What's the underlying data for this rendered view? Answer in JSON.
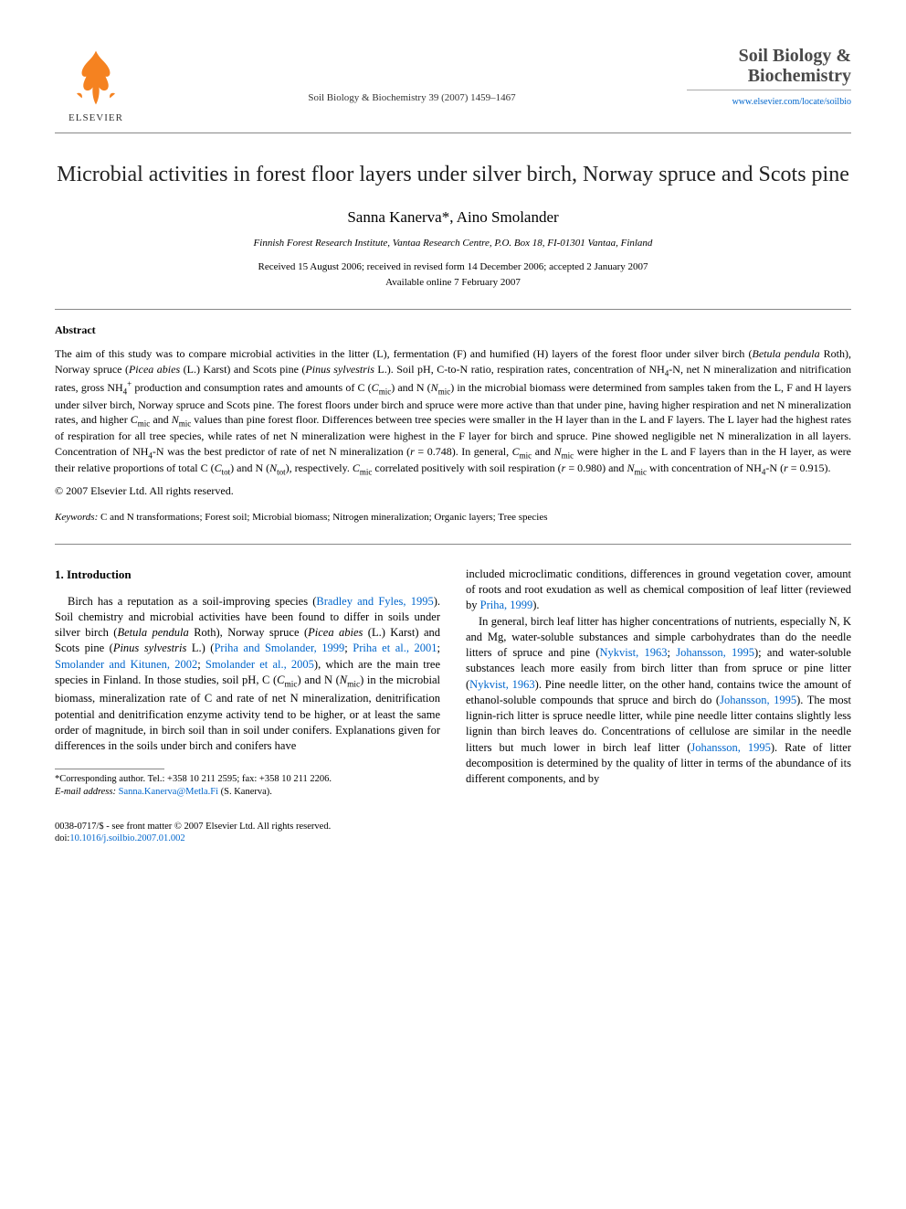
{
  "header": {
    "publisher_name": "ELSEVIER",
    "journal_ref": "Soil Biology & Biochemistry 39 (2007) 1459–1467",
    "journal_logo_line1": "Soil Biology &",
    "journal_logo_line2": "Biochemistry",
    "journal_url": "www.elsevier.com/locate/soilbio"
  },
  "title": "Microbial activities in forest floor layers under silver birch, Norway spruce and Scots pine",
  "authors": "Sanna Kanerva*, Aino Smolander",
  "affiliation": "Finnish Forest Research Institute, Vantaa Research Centre, P.O. Box 18, FI-01301 Vantaa, Finland",
  "dates_line1": "Received 15 August 2006; received in revised form 14 December 2006; accepted 2 January 2007",
  "dates_line2": "Available online 7 February 2007",
  "abstract": {
    "heading": "Abstract",
    "body_html": "The aim of this study was to compare microbial activities in the litter (L), fermentation (F) and humified (H) layers of the forest floor under silver birch (<span class='ital'>Betula pendula</span> Roth), Norway spruce (<span class='ital'>Picea abies</span> (L.) Karst) and Scots pine (<span class='ital'>Pinus sylvestris</span> L.). Soil pH, C-to-N ratio, respiration rates, concentration of NH<span class='sub'>4</span>-N, net N mineralization and nitrification rates, gross NH<span class='sub'>4</span><span class='sup'>+</span> production and consumption rates and amounts of C (<span class='ital'>C</span><span class='sub'>mic</span>) and N (<span class='ital'>N</span><span class='sub'>mic</span>) in the microbial biomass were determined from samples taken from the L, F and H layers under silver birch, Norway spruce and Scots pine. The forest floors under birch and spruce were more active than that under pine, having higher respiration and net N mineralization rates, and higher <span class='ital'>C</span><span class='sub'>mic</span> and <span class='ital'>N</span><span class='sub'>mic</span> values than pine forest floor. Differences between tree species were smaller in the H layer than in the L and F layers. The L layer had the highest rates of respiration for all tree species, while rates of net N mineralization were highest in the F layer for birch and spruce. Pine showed negligible net N mineralization in all layers. Concentration of NH<span class='sub'>4</span>-N was the best predictor of rate of net N mineralization (<span class='ital'>r</span> = 0.748). In general, <span class='ital'>C</span><span class='sub'>mic</span> and <span class='ital'>N</span><span class='sub'>mic</span> were higher in the L and F layers than in the H layer, as were their relative proportions of total C (<span class='ital'>C</span><span class='sub'>tot</span>) and N (<span class='ital'>N</span><span class='sub'>tot</span>), respectively. <span class='ital'>C</span><span class='sub'>mic</span> correlated positively with soil respiration (<span class='ital'>r</span> = 0.980) and <span class='ital'>N</span><span class='sub'>mic</span> with concentration of NH<span class='sub'>4</span>-N (<span class='ital'>r</span> = 0.915).",
    "copyright": "© 2007 Elsevier Ltd. All rights reserved."
  },
  "keywords": {
    "label": "Keywords:",
    "text": " C and N transformations; Forest soil; Microbial biomass; Nitrogen mineralization; Organic layers; Tree species"
  },
  "body": {
    "section_heading": "1. Introduction",
    "col1_html": "Birch has a reputation as a soil-improving species (<span class='link'>Bradley and Fyles, 1995</span>). Soil chemistry and microbial activities have been found to differ in soils under silver birch (<span class='ital'>Betula pendula</span> Roth), Norway spruce (<span class='ital'>Picea abies</span> (L.) Karst) and Scots pine (<span class='ital'>Pinus sylvestris</span> L.) (<span class='link'>Priha and Smolander, 1999</span>; <span class='link'>Priha et al., 2001</span>; <span class='link'>Smolander and Kitunen, 2002</span>; <span class='link'>Smolander et al., 2005</span>), which are the main tree species in Finland. In those studies, soil pH, C (<span class='ital'>C</span><span class='sub'>mic</span>) and N (<span class='ital'>N</span><span class='sub'>mic</span>) in the microbial biomass, mineralization rate of C and rate of net N mineralization, denitrification potential and denitrification enzyme activity tend to be higher, or at least the same order of magnitude, in birch soil than in soil under conifers. Explanations given for differences in the soils under birch and conifers have",
    "col2_para1_html": "included microclimatic conditions, differences in ground vegetation cover, amount of roots and root exudation as well as chemical composition of leaf litter (reviewed by <span class='link'>Priha, 1999</span>).",
    "col2_para2_html": "In general, birch leaf litter has higher concentrations of nutrients, especially N, K and Mg, water-soluble substances and simple carbohydrates than do the needle litters of spruce and pine (<span class='link'>Nykvist, 1963</span>; <span class='link'>Johansson, 1995</span>); and water-soluble substances leach more easily from birch litter than from spruce or pine litter (<span class='link'>Nykvist, 1963</span>). Pine needle litter, on the other hand, contains twice the amount of ethanol-soluble compounds that spruce and birch do (<span class='link'>Johansson, 1995</span>). The most lignin-rich litter is spruce needle litter, while pine needle litter contains slightly less lignin than birch leaves do. Concentrations of cellulose are similar in the needle litters but much lower in birch leaf litter (<span class='link'>Johansson, 1995</span>). Rate of litter decomposition is determined by the quality of litter in terms of the abundance of its different components, and by"
  },
  "footnote": {
    "corr_html": "*Corresponding author. Tel.: +358 10 211 2595; fax: +358 10 211 2206.",
    "email_label": "E-mail address:",
    "email": " Sanna.Kanerva@Metla.Fi",
    "email_tail": " (S. Kanerva)."
  },
  "bottom": {
    "issn_line": "0038-0717/$ - see front matter © 2007 Elsevier Ltd. All rights reserved.",
    "doi_label": "doi:",
    "doi": "10.1016/j.soilbio.2007.01.002"
  },
  "colors": {
    "link": "#0066cc",
    "elsevier_orange": "#f58220",
    "text": "#000000",
    "rule": "#888888"
  }
}
